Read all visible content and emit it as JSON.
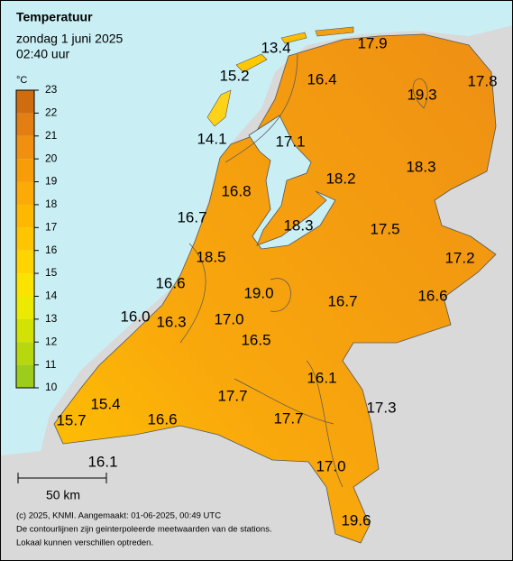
{
  "header": {
    "title": "Temperatuur",
    "lines": [
      "zondag 1 juni 2025",
      "02:40 uur"
    ]
  },
  "legend": {
    "unit": "°C",
    "ticks": [
      10,
      11,
      12,
      13,
      14,
      15,
      16,
      17,
      18,
      19,
      20,
      21,
      22,
      23
    ]
  },
  "stations": [
    "13.4",
    "17.9",
    "15.2",
    "16.4",
    "19.3",
    "17.8",
    "14.1",
    "17.1",
    "18.2",
    "18.3",
    "16.8",
    "16.7",
    "18.3",
    "17.5",
    "18.5",
    "17.2",
    "16.6",
    "19.0",
    "16.7",
    "16.6",
    "16.0",
    "16.3",
    "17.0",
    "16.5",
    "16.1",
    "17.7",
    "17.3",
    "15.4",
    "17.7",
    "15.7",
    "16.6",
    "17.0",
    "16.1",
    "19.6"
  ],
  "scale_bar": "50 km",
  "footer": [
    "(c) 2025, KNMI. Aangemaakt: 01-06-2025, 00:49 UTC",
    "De contourlijnen zijn geinterpoleerde meetwaarden van de stations.",
    "Lokaal kunnen verschillen optreden."
  ]
}
